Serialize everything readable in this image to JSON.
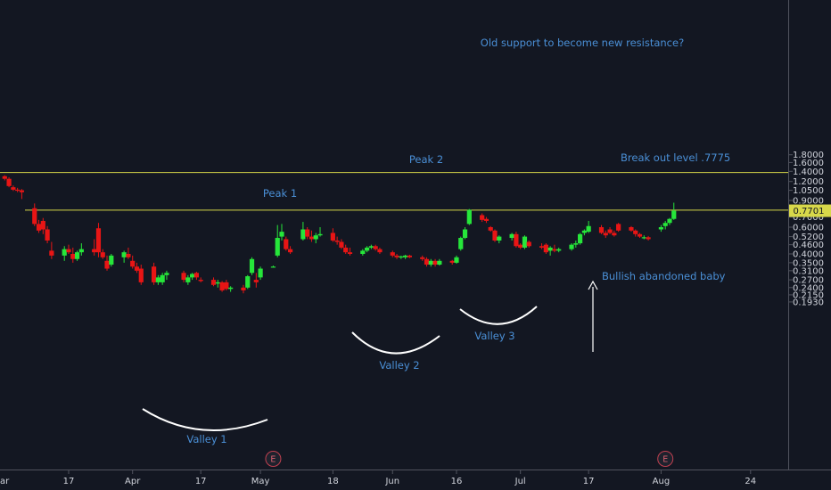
{
  "chart_data": {
    "type": "candlestick",
    "scale": "log",
    "grid": false,
    "colors": {
      "background": "#131722",
      "up": "#26e63a",
      "down": "#e81515",
      "level_line": "#d8d84a",
      "annotation": "#4a8fd6",
      "price_badge_bg": "#d8d84a",
      "price_badge_text": "#131722",
      "earnings_marker": "#c04050"
    },
    "y_ticks": [
      "1.8000",
      "1.6000",
      "1.4000",
      "1.2000",
      "1.0500",
      "0.9000",
      "0.8000",
      "0.7000",
      "0.6000",
      "0.5200",
      "0.4600",
      "0.4000",
      "0.3500",
      "0.3100",
      "0.2700",
      "0.2400",
      "0.2150",
      "0.1930"
    ],
    "x_ticks": [
      {
        "label": "17",
        "date": "2020-03-17"
      },
      {
        "label": "Apr",
        "date": "2020-04-01"
      },
      {
        "label": "17",
        "date": "2020-04-17"
      },
      {
        "label": "May",
        "date": "2020-05-01"
      },
      {
        "label": "18",
        "date": "2020-05-18"
      },
      {
        "label": "Jun",
        "date": "2020-06-01"
      },
      {
        "label": "16",
        "date": "2020-06-16"
      },
      {
        "label": "Jul",
        "date": "2020-07-01"
      },
      {
        "label": "17",
        "date": "2020-07-17"
      },
      {
        "label": "Aug",
        "date": "2020-08-03"
      },
      {
        "label": "24",
        "date": "2020-08-24"
      }
    ],
    "x_edge_label": "ar",
    "current_price": {
      "label": "0.7701",
      "value": 0.7701
    },
    "horizontal_levels": [
      1.375,
      0.7775
    ],
    "earnings_markers": [
      {
        "label": "E",
        "date": "2020-05-04"
      },
      {
        "label": "E",
        "date": "2020-08-04"
      }
    ],
    "annotations": [
      {
        "id": "resistance",
        "text": "Old support to become new resistance?"
      },
      {
        "id": "breakout",
        "text": "Break out level .7775"
      },
      {
        "id": "peak1",
        "text": "Peak 1"
      },
      {
        "id": "peak2",
        "text": "Peak 2"
      },
      {
        "id": "valley1",
        "text": "Valley 1"
      },
      {
        "id": "valley2",
        "text": "Valley 2"
      },
      {
        "id": "valley3",
        "text": "Valley 3"
      },
      {
        "id": "baby",
        "text": "Bullish abandoned baby"
      }
    ],
    "candles": [
      {
        "date": "2020-03-02",
        "o": 1.3,
        "h": 1.32,
        "l": 1.22,
        "c": 1.25
      },
      {
        "date": "2020-03-03",
        "o": 1.25,
        "h": 1.28,
        "l": 1.1,
        "c": 1.12
      },
      {
        "date": "2020-03-04",
        "o": 1.1,
        "h": 1.13,
        "l": 1.04,
        "c": 1.06
      },
      {
        "date": "2020-03-05",
        "o": 1.06,
        "h": 1.09,
        "l": 1.02,
        "c": 1.05
      },
      {
        "date": "2020-03-06",
        "o": 1.05,
        "h": 1.07,
        "l": 0.92,
        "c": 1.02
      },
      {
        "date": "2020-03-09",
        "o": 0.8,
        "h": 0.86,
        "l": 0.61,
        "c": 0.63
      },
      {
        "date": "2020-03-10",
        "o": 0.63,
        "h": 0.67,
        "l": 0.55,
        "c": 0.57
      },
      {
        "date": "2020-03-11",
        "o": 0.66,
        "h": 0.69,
        "l": 0.54,
        "c": 0.58
      },
      {
        "date": "2020-03-12",
        "o": 0.58,
        "h": 0.61,
        "l": 0.47,
        "c": 0.49
      },
      {
        "date": "2020-03-13",
        "o": 0.42,
        "h": 0.48,
        "l": 0.37,
        "c": 0.39
      },
      {
        "date": "2020-03-16",
        "o": 0.39,
        "h": 0.45,
        "l": 0.36,
        "c": 0.43
      },
      {
        "date": "2020-03-17",
        "o": 0.43,
        "h": 0.46,
        "l": 0.4,
        "c": 0.41
      },
      {
        "date": "2020-03-18",
        "o": 0.4,
        "h": 0.44,
        "l": 0.35,
        "c": 0.37
      },
      {
        "date": "2020-03-19",
        "o": 0.37,
        "h": 0.42,
        "l": 0.36,
        "c": 0.41
      },
      {
        "date": "2020-03-20",
        "o": 0.41,
        "h": 0.47,
        "l": 0.39,
        "c": 0.43
      },
      {
        "date": "2020-03-23",
        "o": 0.43,
        "h": 0.5,
        "l": 0.39,
        "c": 0.41
      },
      {
        "date": "2020-03-24",
        "o": 0.59,
        "h": 0.64,
        "l": 0.38,
        "c": 0.41
      },
      {
        "date": "2020-03-25",
        "o": 0.41,
        "h": 0.43,
        "l": 0.37,
        "c": 0.38
      },
      {
        "date": "2020-03-26",
        "o": 0.36,
        "h": 0.39,
        "l": 0.31,
        "c": 0.32
      },
      {
        "date": "2020-03-27",
        "o": 0.34,
        "h": 0.4,
        "l": 0.33,
        "c": 0.39
      },
      {
        "date": "2020-03-30",
        "o": 0.38,
        "h": 0.42,
        "l": 0.35,
        "c": 0.41
      },
      {
        "date": "2020-03-31",
        "o": 0.4,
        "h": 0.44,
        "l": 0.37,
        "c": 0.38
      },
      {
        "date": "2020-04-01",
        "o": 0.36,
        "h": 0.39,
        "l": 0.32,
        "c": 0.33
      },
      {
        "date": "2020-04-02",
        "o": 0.33,
        "h": 0.35,
        "l": 0.3,
        "c": 0.31
      },
      {
        "date": "2020-04-03",
        "o": 0.32,
        "h": 0.34,
        "l": 0.25,
        "c": 0.26
      },
      {
        "date": "2020-04-06",
        "o": 0.33,
        "h": 0.35,
        "l": 0.25,
        "c": 0.26
      },
      {
        "date": "2020-04-07",
        "o": 0.26,
        "h": 0.29,
        "l": 0.25,
        "c": 0.28
      },
      {
        "date": "2020-04-08",
        "o": 0.26,
        "h": 0.3,
        "l": 0.25,
        "c": 0.29
      },
      {
        "date": "2020-04-09",
        "o": 0.29,
        "h": 0.31,
        "l": 0.27,
        "c": 0.3
      },
      {
        "date": "2020-04-13",
        "o": 0.3,
        "h": 0.31,
        "l": 0.26,
        "c": 0.27
      },
      {
        "date": "2020-04-14",
        "o": 0.26,
        "h": 0.29,
        "l": 0.25,
        "c": 0.28
      },
      {
        "date": "2020-04-15",
        "o": 0.28,
        "h": 0.3,
        "l": 0.27,
        "c": 0.295
      },
      {
        "date": "2020-04-16",
        "o": 0.3,
        "h": 0.305,
        "l": 0.27,
        "c": 0.28
      },
      {
        "date": "2020-04-17",
        "o": 0.27,
        "h": 0.28,
        "l": 0.26,
        "c": 0.265
      },
      {
        "date": "2020-04-20",
        "o": 0.27,
        "h": 0.28,
        "l": 0.245,
        "c": 0.25
      },
      {
        "date": "2020-04-21",
        "o": 0.255,
        "h": 0.27,
        "l": 0.24,
        "c": 0.26
      },
      {
        "date": "2020-04-22",
        "o": 0.26,
        "h": 0.265,
        "l": 0.225,
        "c": 0.23
      },
      {
        "date": "2020-04-23",
        "o": 0.26,
        "h": 0.27,
        "l": 0.23,
        "c": 0.235
      },
      {
        "date": "2020-04-24",
        "o": 0.235,
        "h": 0.245,
        "l": 0.225,
        "c": 0.24
      },
      {
        "date": "2020-04-27",
        "o": 0.24,
        "h": 0.25,
        "l": 0.22,
        "c": 0.23
      },
      {
        "date": "2020-04-28",
        "o": 0.24,
        "h": 0.29,
        "l": 0.235,
        "c": 0.285
      },
      {
        "date": "2020-04-29",
        "o": 0.3,
        "h": 0.38,
        "l": 0.29,
        "c": 0.37
      },
      {
        "date": "2020-04-30",
        "o": 0.27,
        "h": 0.3,
        "l": 0.24,
        "c": 0.26
      },
      {
        "date": "2020-05-01",
        "o": 0.28,
        "h": 0.33,
        "l": 0.27,
        "c": 0.32
      },
      {
        "date": "2020-05-04",
        "o": 0.33,
        "h": 0.335,
        "l": 0.325,
        "c": 0.33
      },
      {
        "date": "2020-05-05",
        "o": 0.39,
        "h": 0.62,
        "l": 0.38,
        "c": 0.51
      },
      {
        "date": "2020-05-06",
        "o": 0.52,
        "h": 0.63,
        "l": 0.49,
        "c": 0.56
      },
      {
        "date": "2020-05-07",
        "o": 0.5,
        "h": 0.52,
        "l": 0.42,
        "c": 0.43
      },
      {
        "date": "2020-05-08",
        "o": 0.43,
        "h": 0.45,
        "l": 0.4,
        "c": 0.41
      },
      {
        "date": "2020-05-11",
        "o": 0.5,
        "h": 0.65,
        "l": 0.49,
        "c": 0.58
      },
      {
        "date": "2020-05-12",
        "o": 0.58,
        "h": 0.6,
        "l": 0.5,
        "c": 0.52
      },
      {
        "date": "2020-05-13",
        "o": 0.52,
        "h": 0.57,
        "l": 0.48,
        "c": 0.5
      },
      {
        "date": "2020-05-14",
        "o": 0.5,
        "h": 0.55,
        "l": 0.47,
        "c": 0.53
      },
      {
        "date": "2020-05-15",
        "o": 0.53,
        "h": 0.6,
        "l": 0.52,
        "c": 0.54
      },
      {
        "date": "2020-05-18",
        "o": 0.55,
        "h": 0.59,
        "l": 0.48,
        "c": 0.49
      },
      {
        "date": "2020-05-19",
        "o": 0.49,
        "h": 0.52,
        "l": 0.46,
        "c": 0.48
      },
      {
        "date": "2020-05-20",
        "o": 0.48,
        "h": 0.5,
        "l": 0.43,
        "c": 0.44
      },
      {
        "date": "2020-05-21",
        "o": 0.44,
        "h": 0.46,
        "l": 0.4,
        "c": 0.41
      },
      {
        "date": "2020-05-22",
        "o": 0.41,
        "h": 0.44,
        "l": 0.39,
        "c": 0.4
      },
      {
        "date": "2020-05-25",
        "o": 0.4,
        "h": 0.43,
        "l": 0.39,
        "c": 0.42
      },
      {
        "date": "2020-05-26",
        "o": 0.42,
        "h": 0.45,
        "l": 0.41,
        "c": 0.44
      },
      {
        "date": "2020-05-27",
        "o": 0.44,
        "h": 0.46,
        "l": 0.43,
        "c": 0.45
      },
      {
        "date": "2020-05-28",
        "o": 0.45,
        "h": 0.46,
        "l": 0.42,
        "c": 0.43
      },
      {
        "date": "2020-05-29",
        "o": 0.43,
        "h": 0.44,
        "l": 0.4,
        "c": 0.41
      },
      {
        "date": "2020-06-01",
        "o": 0.41,
        "h": 0.42,
        "l": 0.38,
        "c": 0.39
      },
      {
        "date": "2020-06-02",
        "o": 0.39,
        "h": 0.4,
        "l": 0.37,
        "c": 0.38
      },
      {
        "date": "2020-06-03",
        "o": 0.38,
        "h": 0.39,
        "l": 0.37,
        "c": 0.385
      },
      {
        "date": "2020-06-04",
        "o": 0.38,
        "h": 0.395,
        "l": 0.37,
        "c": 0.39
      },
      {
        "date": "2020-06-05",
        "o": 0.39,
        "h": 0.395,
        "l": 0.375,
        "c": 0.38
      },
      {
        "date": "2020-06-08",
        "o": 0.38,
        "h": 0.39,
        "l": 0.36,
        "c": 0.37
      },
      {
        "date": "2020-06-09",
        "o": 0.37,
        "h": 0.38,
        "l": 0.33,
        "c": 0.34
      },
      {
        "date": "2020-06-10",
        "o": 0.34,
        "h": 0.37,
        "l": 0.33,
        "c": 0.36
      },
      {
        "date": "2020-06-11",
        "o": 0.36,
        "h": 0.37,
        "l": 0.33,
        "c": 0.34
      },
      {
        "date": "2020-06-12",
        "o": 0.34,
        "h": 0.37,
        "l": 0.335,
        "c": 0.36
      },
      {
        "date": "2020-06-15",
        "o": 0.36,
        "h": 0.365,
        "l": 0.34,
        "c": 0.35
      },
      {
        "date": "2020-06-16",
        "o": 0.35,
        "h": 0.39,
        "l": 0.345,
        "c": 0.38
      },
      {
        "date": "2020-06-17",
        "o": 0.43,
        "h": 0.52,
        "l": 0.42,
        "c": 0.51
      },
      {
        "date": "2020-06-18",
        "o": 0.51,
        "h": 0.6,
        "l": 0.5,
        "c": 0.58
      },
      {
        "date": "2020-06-19",
        "o": 0.63,
        "h": 0.79,
        "l": 0.62,
        "c": 0.78
      },
      {
        "date": "2020-06-22",
        "o": 0.72,
        "h": 0.74,
        "l": 0.65,
        "c": 0.67
      },
      {
        "date": "2020-06-23",
        "o": 0.68,
        "h": 0.7,
        "l": 0.64,
        "c": 0.66
      },
      {
        "date": "2020-06-24",
        "o": 0.6,
        "h": 0.61,
        "l": 0.56,
        "c": 0.57
      },
      {
        "date": "2020-06-25",
        "o": 0.57,
        "h": 0.58,
        "l": 0.48,
        "c": 0.49
      },
      {
        "date": "2020-06-26",
        "o": 0.49,
        "h": 0.53,
        "l": 0.47,
        "c": 0.52
      },
      {
        "date": "2020-06-29",
        "o": 0.51,
        "h": 0.55,
        "l": 0.49,
        "c": 0.54
      },
      {
        "date": "2020-06-30",
        "o": 0.54,
        "h": 0.56,
        "l": 0.44,
        "c": 0.45
      },
      {
        "date": "2020-07-01",
        "o": 0.46,
        "h": 0.47,
        "l": 0.43,
        "c": 0.44
      },
      {
        "date": "2020-07-02",
        "o": 0.44,
        "h": 0.53,
        "l": 0.43,
        "c": 0.52
      },
      {
        "date": "2020-07-03",
        "o": 0.48,
        "h": 0.49,
        "l": 0.44,
        "c": 0.45
      },
      {
        "date": "2020-07-06",
        "o": 0.45,
        "h": 0.47,
        "l": 0.43,
        "c": 0.44
      },
      {
        "date": "2020-07-07",
        "o": 0.46,
        "h": 0.47,
        "l": 0.4,
        "c": 0.41
      },
      {
        "date": "2020-07-08",
        "o": 0.42,
        "h": 0.45,
        "l": 0.39,
        "c": 0.44
      },
      {
        "date": "2020-07-09",
        "o": 0.43,
        "h": 0.46,
        "l": 0.41,
        "c": 0.42
      },
      {
        "date": "2020-07-10",
        "o": 0.42,
        "h": 0.44,
        "l": 0.41,
        "c": 0.43
      },
      {
        "date": "2020-07-13",
        "o": 0.43,
        "h": 0.47,
        "l": 0.42,
        "c": 0.46
      },
      {
        "date": "2020-07-14",
        "o": 0.46,
        "h": 0.49,
        "l": 0.44,
        "c": 0.47
      },
      {
        "date": "2020-07-15",
        "o": 0.47,
        "h": 0.55,
        "l": 0.46,
        "c": 0.54
      },
      {
        "date": "2020-07-16",
        "o": 0.55,
        "h": 0.58,
        "l": 0.53,
        "c": 0.57
      },
      {
        "date": "2020-07-17",
        "o": 0.56,
        "h": 0.66,
        "l": 0.55,
        "c": 0.61
      },
      {
        "date": "2020-07-20",
        "o": 0.6,
        "h": 0.62,
        "l": 0.54,
        "c": 0.55
      },
      {
        "date": "2020-07-21",
        "o": 0.55,
        "h": 0.57,
        "l": 0.51,
        "c": 0.53
      },
      {
        "date": "2020-07-22",
        "o": 0.58,
        "h": 0.6,
        "l": 0.54,
        "c": 0.55
      },
      {
        "date": "2020-07-23",
        "o": 0.55,
        "h": 0.57,
        "l": 0.52,
        "c": 0.53
      },
      {
        "date": "2020-07-24",
        "o": 0.63,
        "h": 0.64,
        "l": 0.56,
        "c": 0.57
      },
      {
        "date": "2020-07-27",
        "o": 0.6,
        "h": 0.61,
        "l": 0.56,
        "c": 0.57
      },
      {
        "date": "2020-07-28",
        "o": 0.57,
        "h": 0.58,
        "l": 0.52,
        "c": 0.54
      },
      {
        "date": "2020-07-29",
        "o": 0.54,
        "h": 0.55,
        "l": 0.51,
        "c": 0.52
      },
      {
        "date": "2020-07-30",
        "o": 0.51,
        "h": 0.53,
        "l": 0.5,
        "c": 0.515
      },
      {
        "date": "2020-07-31",
        "o": 0.515,
        "h": 0.525,
        "l": 0.49,
        "c": 0.5
      },
      {
        "date": "2020-08-03",
        "o": 0.58,
        "h": 0.62,
        "l": 0.56,
        "c": 0.6
      },
      {
        "date": "2020-08-04",
        "o": 0.61,
        "h": 0.66,
        "l": 0.58,
        "c": 0.64
      },
      {
        "date": "2020-08-05",
        "o": 0.64,
        "h": 0.69,
        "l": 0.62,
        "c": 0.68
      },
      {
        "date": "2020-08-06",
        "o": 0.68,
        "h": 0.87,
        "l": 0.67,
        "c": 0.77
      }
    ]
  }
}
